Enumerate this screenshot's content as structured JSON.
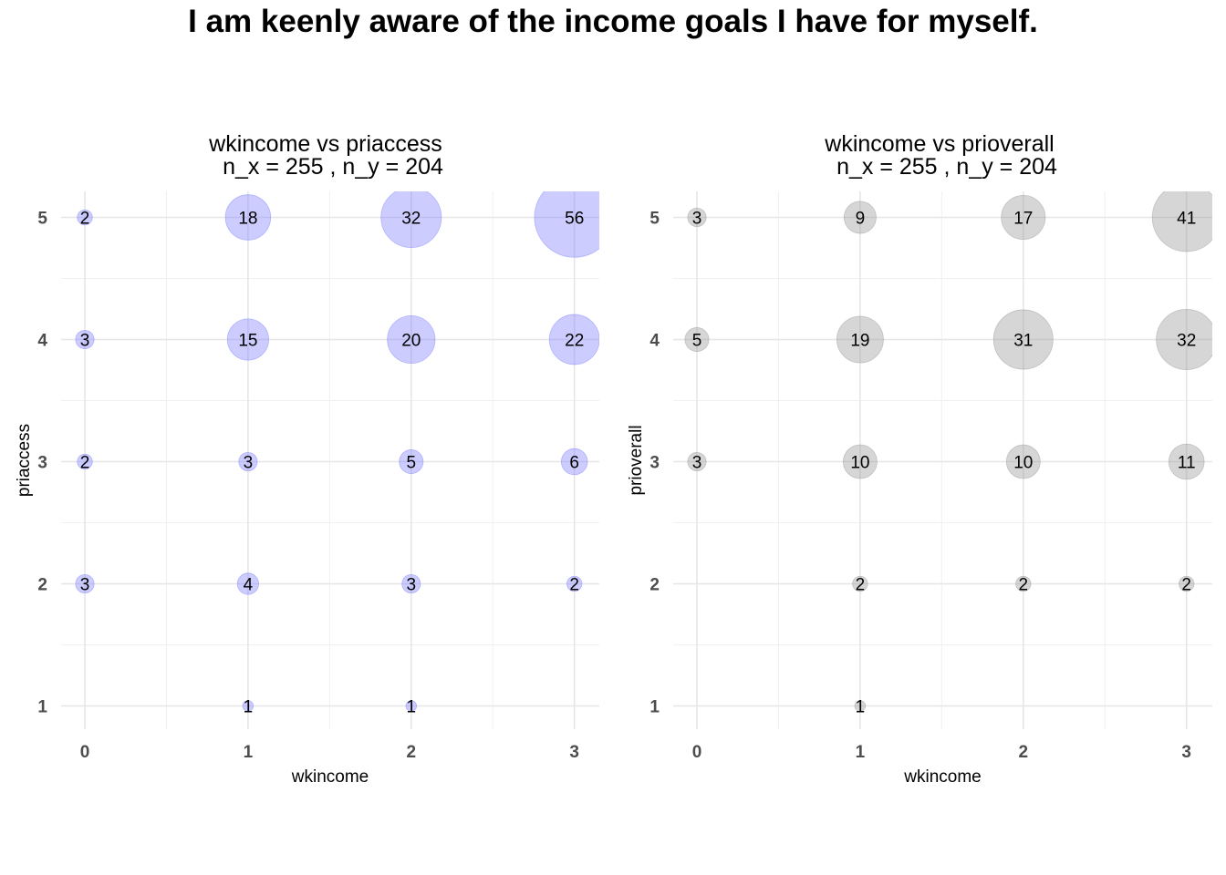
{
  "title": "I am keenly aware of the income goals I have for myself.",
  "chart_data": [
    {
      "type": "scatter",
      "title": "wkincome vs priaccess",
      "subtitle": "n_x = 255 , n_y = 204",
      "xlabel": "wkincome",
      "ylabel": "priaccess",
      "x_ticks": [
        "0",
        "1",
        "2",
        "3"
      ],
      "y_ticks": [
        "1",
        "2",
        "3",
        "4",
        "5"
      ],
      "xlim": [
        0,
        3
      ],
      "ylim": [
        1,
        5
      ],
      "grid": true,
      "point_color": "#8080ff",
      "points": [
        {
          "x": 0,
          "y": 5,
          "count": 2
        },
        {
          "x": 1,
          "y": 5,
          "count": 18
        },
        {
          "x": 2,
          "y": 5,
          "count": 32
        },
        {
          "x": 3,
          "y": 5,
          "count": 56
        },
        {
          "x": 0,
          "y": 4,
          "count": 3
        },
        {
          "x": 1,
          "y": 4,
          "count": 15
        },
        {
          "x": 2,
          "y": 4,
          "count": 20
        },
        {
          "x": 3,
          "y": 4,
          "count": 22
        },
        {
          "x": 0,
          "y": 3,
          "count": 2
        },
        {
          "x": 1,
          "y": 3,
          "count": 3
        },
        {
          "x": 2,
          "y": 3,
          "count": 5
        },
        {
          "x": 3,
          "y": 3,
          "count": 6
        },
        {
          "x": 0,
          "y": 2,
          "count": 3
        },
        {
          "x": 1,
          "y": 2,
          "count": 4
        },
        {
          "x": 2,
          "y": 2,
          "count": 3
        },
        {
          "x": 3,
          "y": 2,
          "count": 2
        },
        {
          "x": 1,
          "y": 1,
          "count": 1
        },
        {
          "x": 2,
          "y": 1,
          "count": 1
        }
      ]
    },
    {
      "type": "scatter",
      "title": "wkincome vs prioverall",
      "subtitle": "n_x = 255 , n_y = 204",
      "xlabel": "wkincome",
      "ylabel": "prioverall",
      "x_ticks": [
        "0",
        "1",
        "2",
        "3"
      ],
      "y_ticks": [
        "1",
        "2",
        "3",
        "4",
        "5"
      ],
      "xlim": [
        0,
        3
      ],
      "ylim": [
        1,
        5
      ],
      "grid": true,
      "point_color": "#999999",
      "points": [
        {
          "x": 0,
          "y": 5,
          "count": 3
        },
        {
          "x": 1,
          "y": 5,
          "count": 9
        },
        {
          "x": 2,
          "y": 5,
          "count": 17
        },
        {
          "x": 3,
          "y": 5,
          "count": 41
        },
        {
          "x": 0,
          "y": 4,
          "count": 5
        },
        {
          "x": 1,
          "y": 4,
          "count": 19
        },
        {
          "x": 2,
          "y": 4,
          "count": 31
        },
        {
          "x": 3,
          "y": 4,
          "count": 32
        },
        {
          "x": 0,
          "y": 3,
          "count": 3
        },
        {
          "x": 1,
          "y": 3,
          "count": 10
        },
        {
          "x": 2,
          "y": 3,
          "count": 10
        },
        {
          "x": 3,
          "y": 3,
          "count": 11
        },
        {
          "x": 1,
          "y": 2,
          "count": 2
        },
        {
          "x": 2,
          "y": 2,
          "count": 2
        },
        {
          "x": 3,
          "y": 2,
          "count": 2
        },
        {
          "x": 1,
          "y": 1,
          "count": 1
        }
      ]
    }
  ]
}
